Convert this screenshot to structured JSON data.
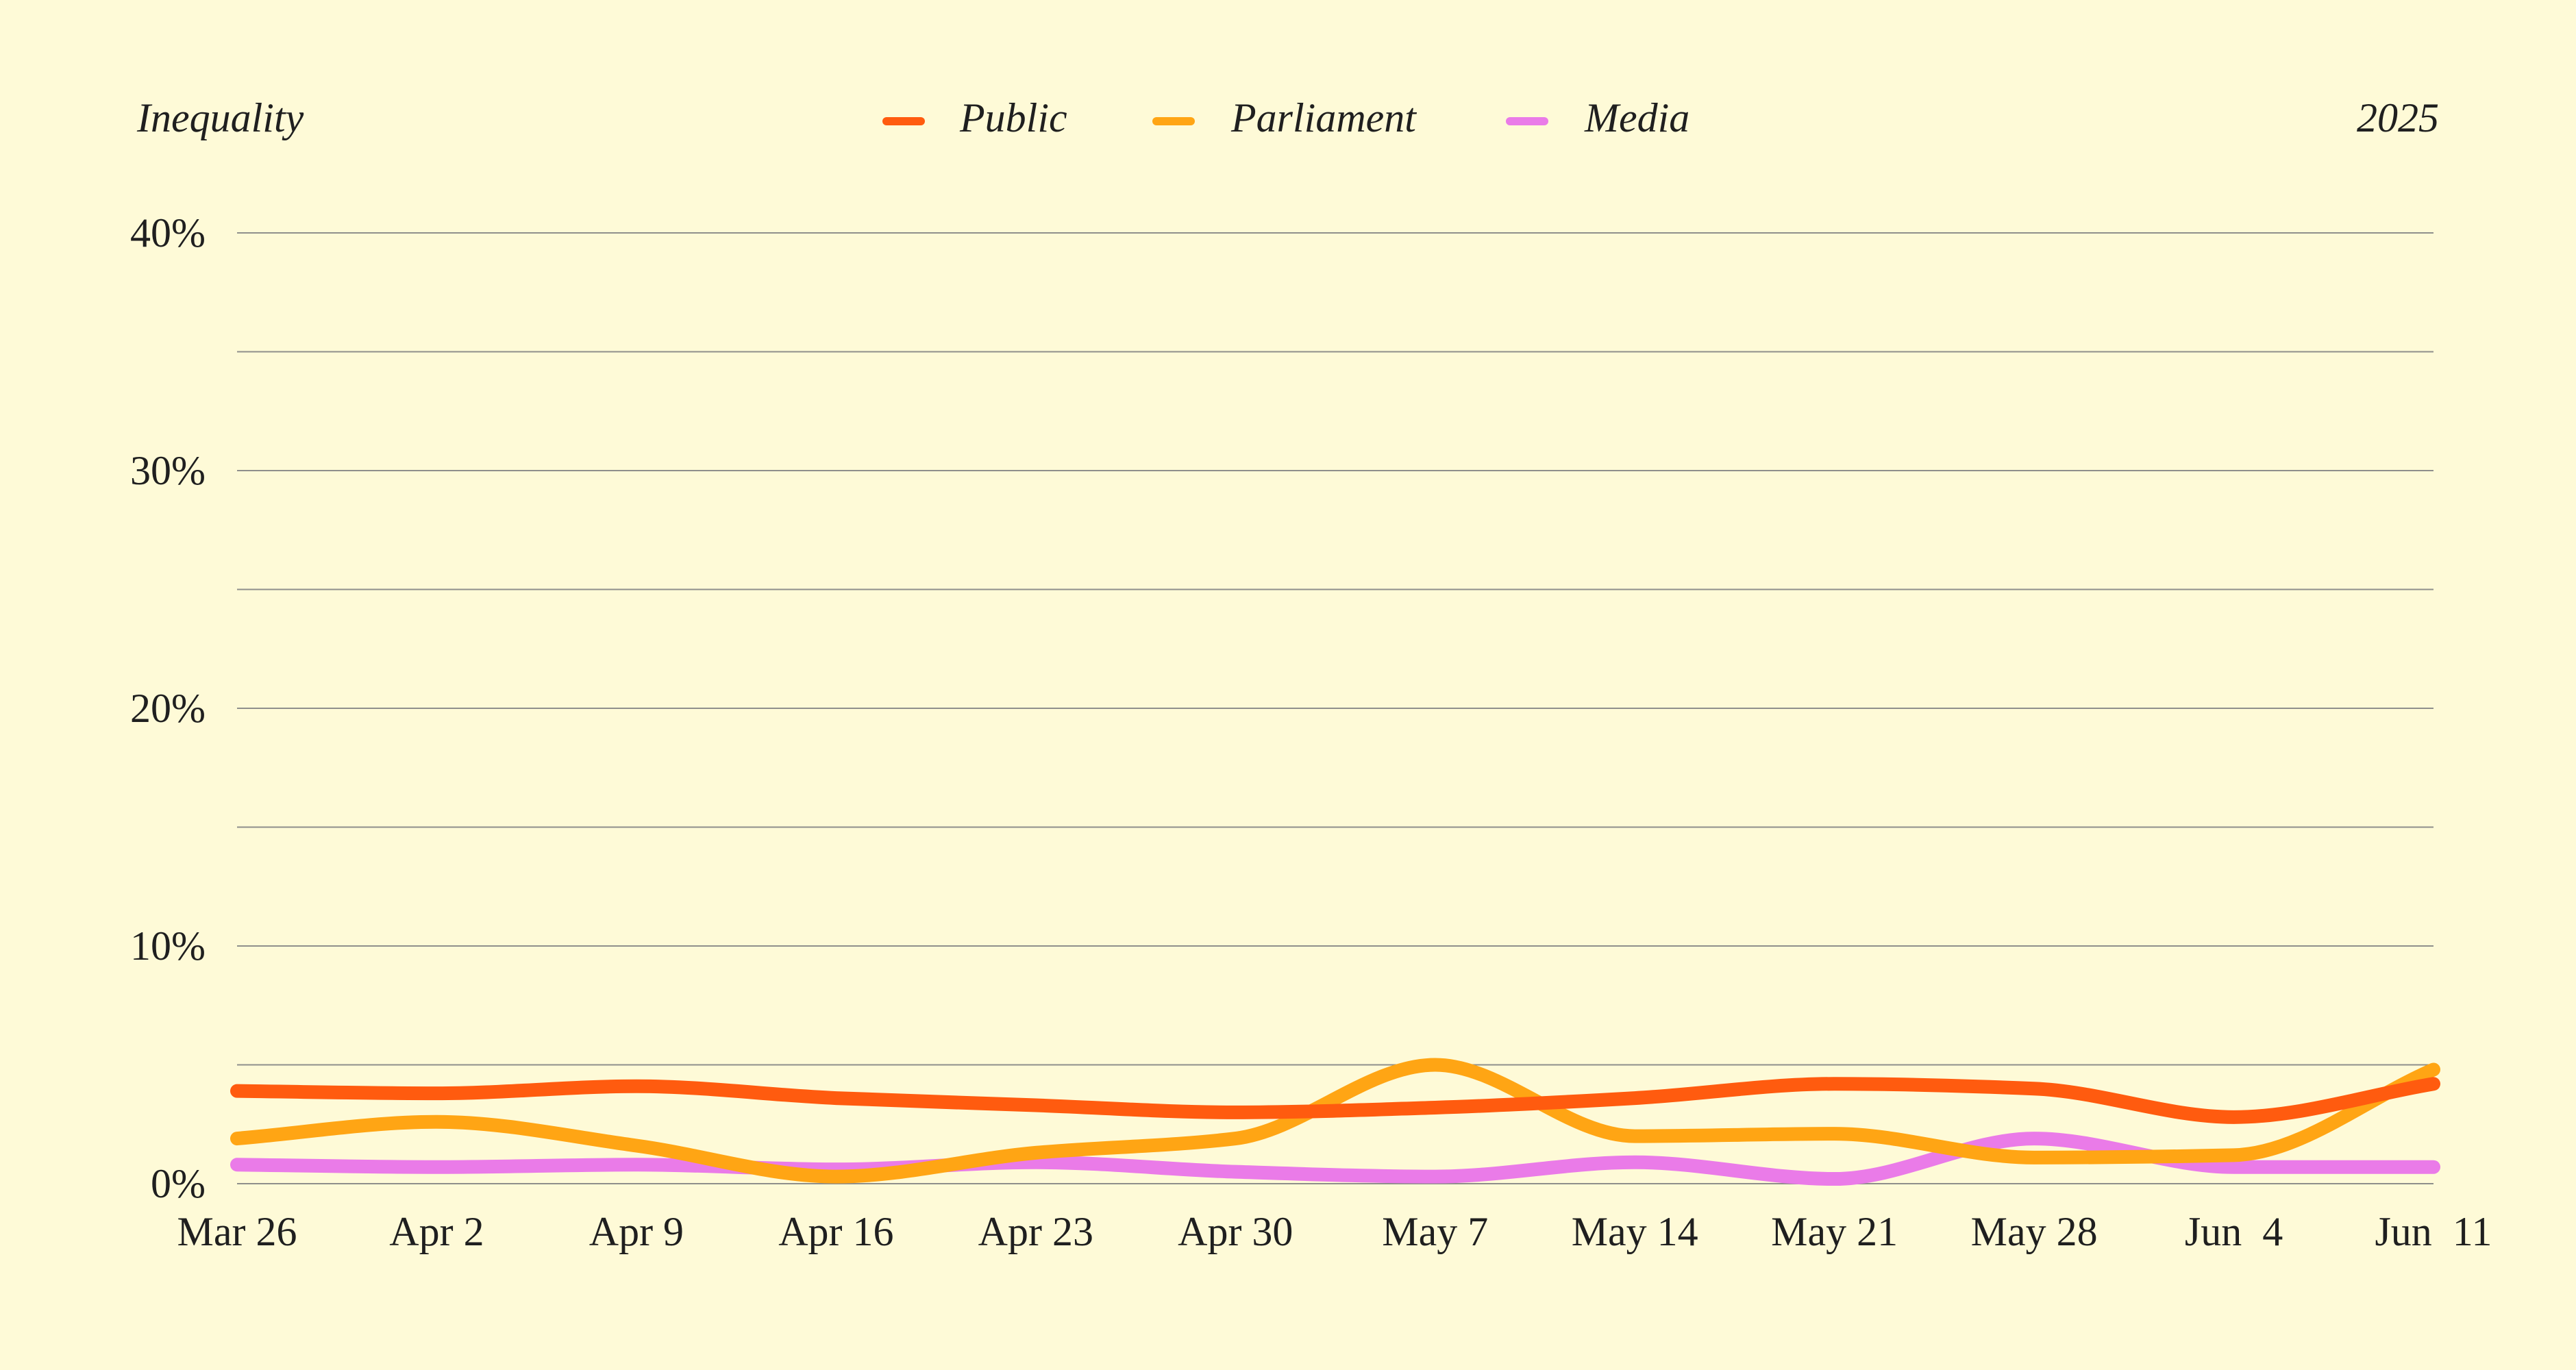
{
  "chart_data": {
    "type": "line",
    "title": "Inequality",
    "year_label": "2025",
    "categories": [
      "Mar 26",
      "Apr 2",
      "Apr 9",
      "Apr 16",
      "Apr 23",
      "Apr 30",
      "May 7",
      "May 14",
      "May 21",
      "May 28",
      "Jun  4",
      "Jun  11"
    ],
    "series": [
      {
        "name": "Public",
        "color": "#ff5b0f",
        "values": [
          3.9,
          3.8,
          4.1,
          3.6,
          3.3,
          3.0,
          3.2,
          3.6,
          4.2,
          4.0,
          2.8,
          4.2
        ]
      },
      {
        "name": "Parliament",
        "color": "#ffa514",
        "values": [
          1.9,
          2.6,
          1.6,
          0.3,
          1.3,
          1.9,
          5.0,
          2.0,
          2.1,
          1.1,
          1.2,
          4.8
        ]
      },
      {
        "name": "Media",
        "color": "#ea7be8",
        "values": [
          0.8,
          0.7,
          0.8,
          0.6,
          0.9,
          0.5,
          0.3,
          0.9,
          0.2,
          1.9,
          0.7,
          0.7
        ]
      }
    ],
    "ylim": [
      0,
      40
    ],
    "y_ticks": [
      {
        "value": 0,
        "label": "0%"
      },
      {
        "value": 10,
        "label": "10%"
      },
      {
        "value": 20,
        "label": "20%"
      },
      {
        "value": 30,
        "label": "30%"
      },
      {
        "value": 40,
        "label": "40%"
      }
    ],
    "y_minor_gridlines": [
      5,
      15,
      25,
      35
    ],
    "xlabel": "",
    "ylabel": "",
    "grid": true,
    "legend_position": "top-center"
  }
}
